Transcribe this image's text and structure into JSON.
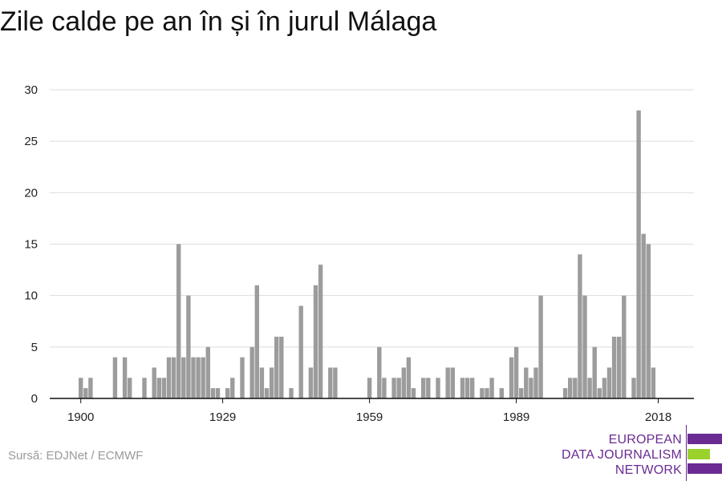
{
  "colors": {
    "bar": "#9c9c9c",
    "grid": "#dddddd",
    "axis": "#111111",
    "brand_purple": "#6a2b93",
    "brand_green": "#9bd12c"
  },
  "source": "Sursă: EDJNet / ECMWF",
  "logo": {
    "line1": "EUROPEAN",
    "line2": "DATA JOURNALISM",
    "line3": "NETWORK"
  },
  "chart_data": {
    "type": "bar",
    "title": "Zile calde pe an în și în jurul Málaga",
    "xlabel": "",
    "ylabel": "",
    "ylim": [
      0,
      30
    ],
    "yticks": [
      0,
      5,
      10,
      15,
      20,
      25,
      30
    ],
    "xticks": [
      1900,
      1929,
      1959,
      1989,
      2018
    ],
    "grid": true,
    "legend": "none",
    "categories": [
      1900,
      1901,
      1902,
      1903,
      1904,
      1905,
      1906,
      1907,
      1908,
      1909,
      1910,
      1911,
      1912,
      1913,
      1914,
      1915,
      1916,
      1917,
      1918,
      1919,
      1920,
      1921,
      1922,
      1923,
      1924,
      1925,
      1926,
      1927,
      1928,
      1929,
      1930,
      1931,
      1932,
      1933,
      1934,
      1935,
      1936,
      1937,
      1938,
      1939,
      1940,
      1941,
      1942,
      1943,
      1944,
      1945,
      1946,
      1947,
      1948,
      1949,
      1950,
      1951,
      1952,
      1953,
      1954,
      1955,
      1956,
      1957,
      1958,
      1959,
      1960,
      1961,
      1962,
      1963,
      1964,
      1965,
      1966,
      1967,
      1968,
      1969,
      1970,
      1971,
      1972,
      1973,
      1974,
      1975,
      1976,
      1977,
      1978,
      1979,
      1980,
      1981,
      1982,
      1983,
      1984,
      1985,
      1986,
      1987,
      1988,
      1989,
      1990,
      1991,
      1992,
      1993,
      1994,
      1995,
      1996,
      1997,
      1998,
      1999,
      2000,
      2001,
      2002,
      2003,
      2004,
      2005,
      2006,
      2007,
      2008,
      2009,
      2010,
      2011,
      2012,
      2013,
      2014,
      2015,
      2016,
      2017,
      2018,
      2019
    ],
    "values": [
      2,
      1,
      2,
      0,
      0,
      0,
      0,
      4,
      0,
      4,
      2,
      0,
      0,
      2,
      0,
      3,
      2,
      2,
      4,
      4,
      15,
      4,
      10,
      4,
      4,
      4,
      5,
      1,
      1,
      0,
      1,
      2,
      0,
      4,
      0,
      5,
      11,
      3,
      1,
      3,
      6,
      6,
      0,
      1,
      0,
      9,
      0,
      3,
      11,
      13,
      0,
      3,
      3,
      0,
      0,
      0,
      0,
      0,
      0,
      2,
      0,
      5,
      2,
      0,
      2,
      2,
      3,
      4,
      1,
      0,
      2,
      2,
      0,
      2,
      0,
      3,
      3,
      0,
      2,
      2,
      2,
      0,
      1,
      1,
      2,
      0,
      1,
      0,
      4,
      5,
      1,
      3,
      2,
      3,
      10,
      0,
      0,
      0,
      0,
      1,
      2,
      2,
      14,
      10,
      2,
      5,
      1,
      2,
      3,
      6,
      6,
      10,
      0,
      2,
      28,
      16,
      15,
      3,
      0,
      0
    ]
  }
}
